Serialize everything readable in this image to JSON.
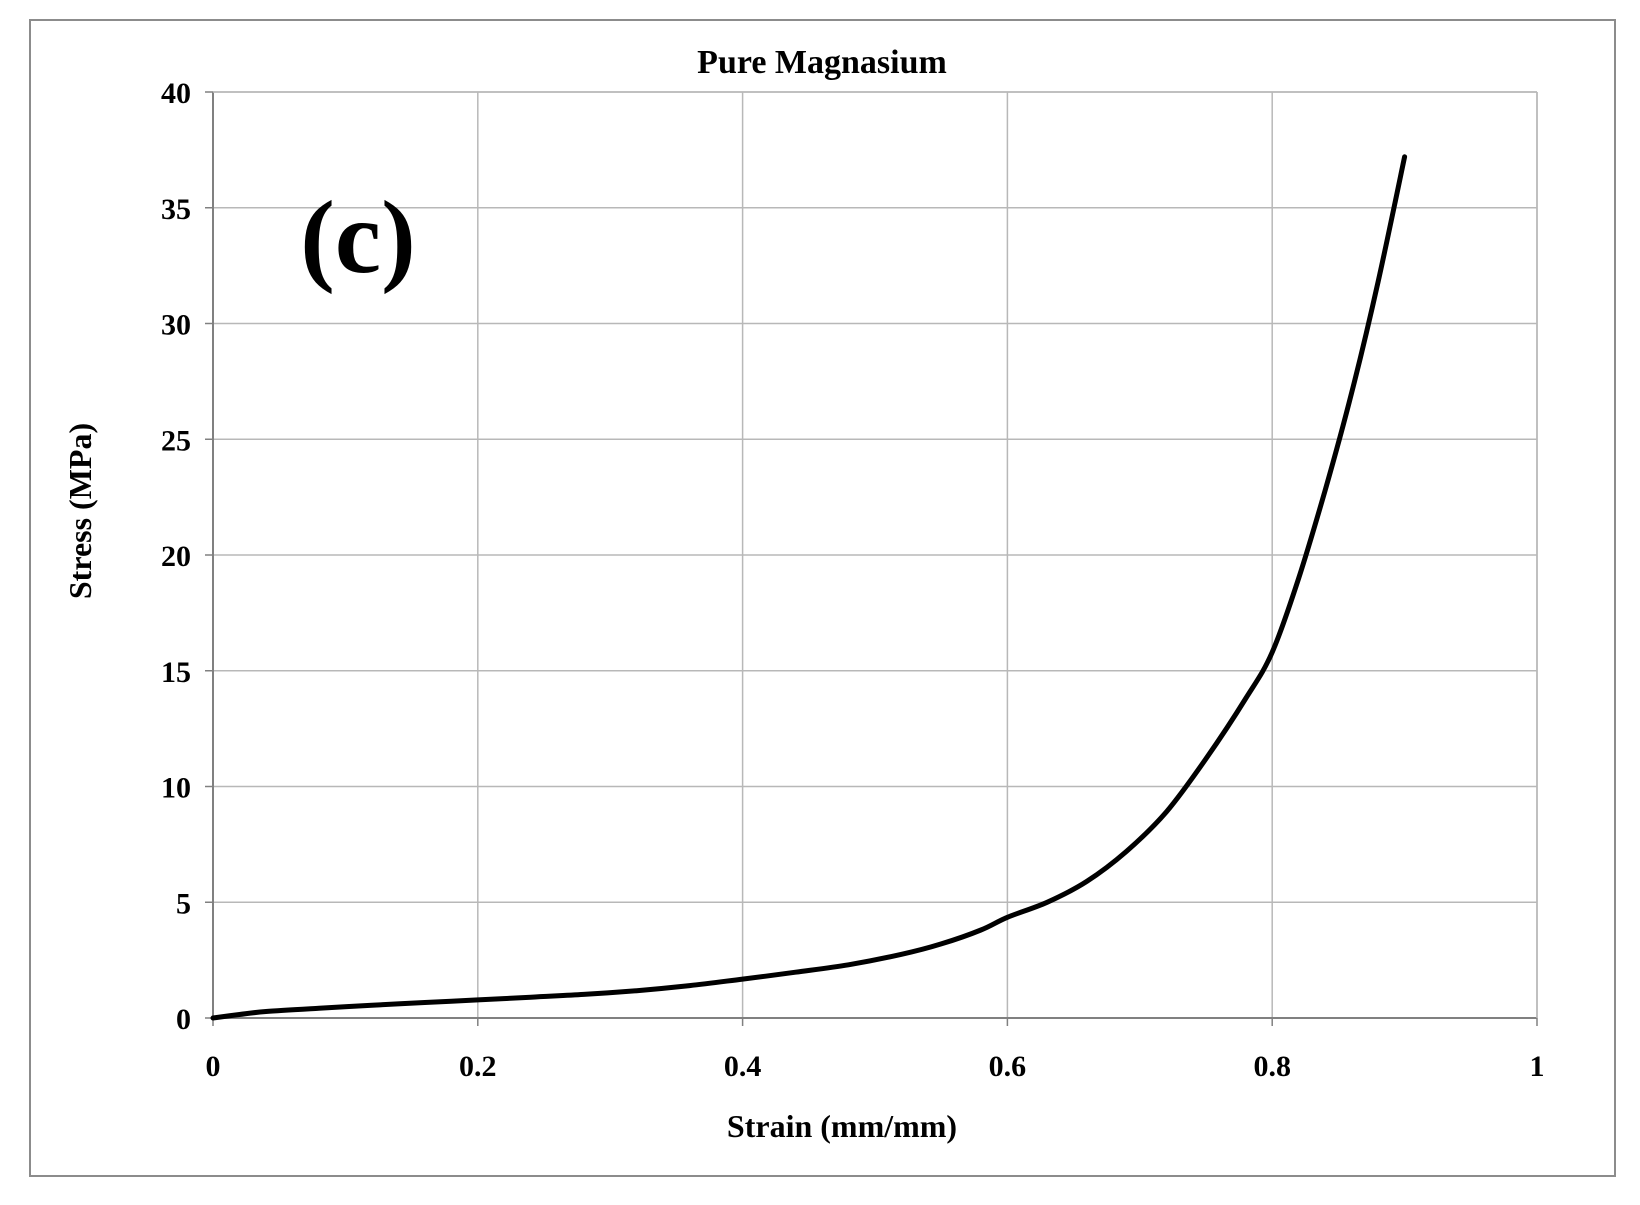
{
  "chart_data": {
    "type": "line",
    "title": "Pure Magnasium",
    "panel_label": "(c)",
    "xlabel": "Strain (mm/mm)",
    "ylabel": "Stress (MPa)",
    "xlim": [
      0,
      1
    ],
    "ylim": [
      0,
      40
    ],
    "x_ticks": [
      "0",
      "0.2",
      "0.4",
      "0.6",
      "0.8",
      "1"
    ],
    "y_ticks": [
      "0",
      "5",
      "10",
      "15",
      "20",
      "25",
      "30",
      "35",
      "40"
    ],
    "grid": true,
    "legend": "none",
    "line_color": "#000000",
    "series": [
      {
        "x": [
          0.0,
          0.02,
          0.04,
          0.08,
          0.12,
          0.16,
          0.2,
          0.24,
          0.28,
          0.32,
          0.36,
          0.4,
          0.44,
          0.48,
          0.52,
          0.55,
          0.58,
          0.6,
          0.63,
          0.66,
          0.69,
          0.72,
          0.75,
          0.78,
          0.8,
          0.82,
          0.84,
          0.86,
          0.88,
          0.9
        ],
        "y": [
          0.0,
          0.15,
          0.28,
          0.42,
          0.55,
          0.67,
          0.78,
          0.9,
          1.02,
          1.18,
          1.4,
          1.68,
          1.98,
          2.3,
          2.75,
          3.2,
          3.8,
          4.35,
          5.0,
          5.9,
          7.2,
          8.9,
          11.2,
          13.8,
          15.8,
          19.0,
          22.8,
          27.0,
          31.8,
          37.2
        ]
      }
    ]
  }
}
